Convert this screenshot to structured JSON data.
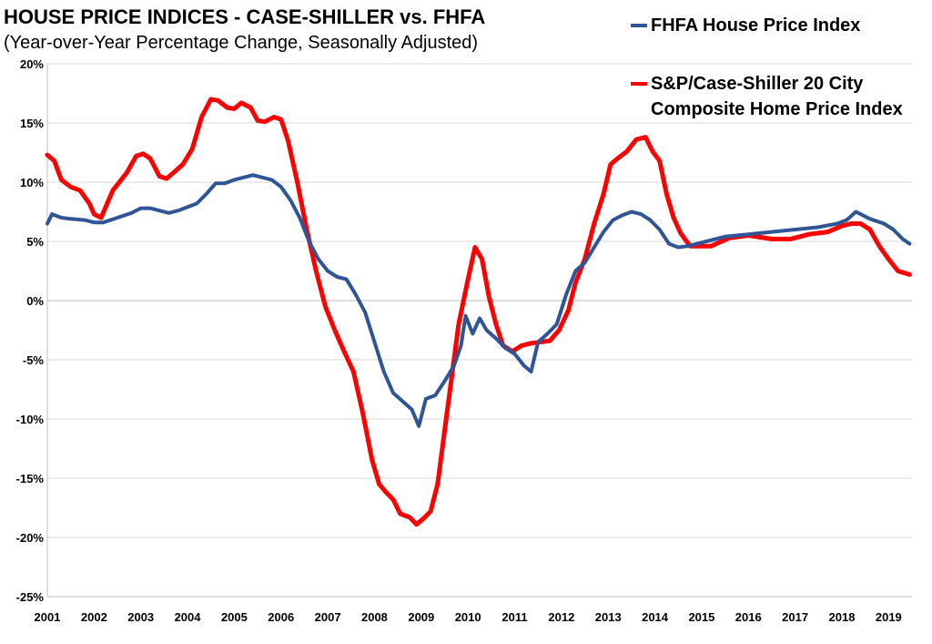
{
  "title": "HOUSE PRICE INDICES - CASE-SHILLER vs. FHFA",
  "subtitle": "(Year-over-Year Percentage Change, Seasonally Adjusted)",
  "legend": {
    "fhfa": "FHFA House Price Index",
    "cs_line1": "S&P/Case-Shiller 20 City",
    "cs_line2": "Composite Home Price Index"
  },
  "colors": {
    "fhfa": "#2f5597",
    "cs": "#ff0000",
    "grid": "#d9d9d9"
  },
  "chart_data": {
    "type": "line",
    "title": "HOUSE PRICE INDICES - CASE-SHILLER vs. FHFA",
    "subtitle": "(Year-over-Year Percentage Change, Seasonally Adjusted)",
    "ylim": [
      -25,
      20
    ],
    "xlim": [
      2001,
      2019.5
    ],
    "yticks": [
      20,
      15,
      10,
      5,
      0,
      -5,
      -10,
      -15,
      -20,
      -25
    ],
    "ytick_labels": [
      "20%",
      "15%",
      "10%",
      "5%",
      "0%",
      "-5%",
      "-10%",
      "-15%",
      "-20%",
      "-25%"
    ],
    "xticks": [
      2001,
      2002,
      2003,
      2004,
      2005,
      2006,
      2007,
      2008,
      2009,
      2010,
      2011,
      2012,
      2013,
      2014,
      2015,
      2016,
      2017,
      2018,
      2019
    ],
    "xtick_labels": [
      "2001",
      "2002",
      "2003",
      "2004",
      "2005",
      "2006",
      "2007",
      "2008",
      "2009",
      "2010",
      "2011",
      "2012",
      "2013",
      "2014",
      "2015",
      "2016",
      "2017",
      "2018",
      "2019"
    ],
    "grid": "horizontal",
    "legend_position": "top-right",
    "series": [
      {
        "name": "FHFA House Price Index",
        "x": [
          2001.0,
          2001.1,
          2001.3,
          2001.5,
          2001.8,
          2002.0,
          2002.2,
          2002.5,
          2002.8,
          2003.0,
          2003.2,
          2003.4,
          2003.6,
          2003.8,
          2004.0,
          2004.2,
          2004.4,
          2004.6,
          2004.8,
          2005.0,
          2005.2,
          2005.4,
          2005.6,
          2005.8,
          2006.0,
          2006.2,
          2006.4,
          2006.6,
          2006.8,
          2007.0,
          2007.2,
          2007.4,
          2007.6,
          2007.8,
          2008.0,
          2008.2,
          2008.4,
          2008.6,
          2008.8,
          2008.95,
          2009.1,
          2009.3,
          2009.5,
          2009.7,
          2009.85,
          2009.95,
          2010.1,
          2010.25,
          2010.4,
          2010.6,
          2010.8,
          2011.0,
          2011.2,
          2011.35,
          2011.5,
          2011.7,
          2011.9,
          2012.1,
          2012.3,
          2012.5,
          2012.7,
          2012.9,
          2013.1,
          2013.3,
          2013.5,
          2013.7,
          2013.9,
          2014.1,
          2014.3,
          2014.5,
          2014.7,
          2014.9,
          2015.1,
          2015.5,
          2016.0,
          2016.5,
          2017.0,
          2017.5,
          2017.9,
          2018.1,
          2018.3,
          2018.6,
          2018.9,
          2019.1,
          2019.3,
          2019.45
        ],
        "values": [
          6.5,
          7.3,
          7.0,
          6.9,
          6.8,
          6.6,
          6.6,
          7.0,
          7.4,
          7.8,
          7.8,
          7.6,
          7.4,
          7.6,
          7.9,
          8.2,
          9.0,
          9.9,
          9.9,
          10.2,
          10.4,
          10.6,
          10.4,
          10.2,
          9.6,
          8.5,
          7.0,
          5.0,
          3.5,
          2.5,
          2.0,
          1.8,
          0.5,
          -1.0,
          -3.5,
          -6.0,
          -7.8,
          -8.5,
          -9.2,
          -10.6,
          -8.3,
          -8.0,
          -6.8,
          -5.5,
          -3.8,
          -1.3,
          -2.8,
          -1.5,
          -2.5,
          -3.2,
          -4.0,
          -4.5,
          -5.5,
          -6.0,
          -3.5,
          -2.8,
          -2.0,
          0.5,
          2.5,
          3.2,
          4.5,
          5.8,
          6.8,
          7.2,
          7.5,
          7.3,
          6.8,
          6.0,
          4.8,
          4.5,
          4.6,
          4.8,
          5.0,
          5.4,
          5.6,
          5.8,
          6.0,
          6.2,
          6.5,
          6.8,
          7.5,
          6.9,
          6.5,
          6.0,
          5.2,
          4.8
        ]
      },
      {
        "name": "S&P/Case-Shiller 20 City Composite Home Price Index",
        "x": [
          2001.0,
          2001.15,
          2001.3,
          2001.5,
          2001.7,
          2001.9,
          2002.0,
          2002.15,
          2002.4,
          2002.7,
          2002.9,
          2003.05,
          2003.2,
          2003.4,
          2003.55,
          2003.7,
          2003.9,
          2004.1,
          2004.3,
          2004.5,
          2004.65,
          2004.85,
          2005.0,
          2005.15,
          2005.35,
          2005.5,
          2005.65,
          2005.85,
          2006.0,
          2006.15,
          2006.35,
          2006.55,
          2006.75,
          2006.95,
          2007.15,
          2007.35,
          2007.55,
          2007.75,
          2007.95,
          2008.1,
          2008.25,
          2008.4,
          2008.55,
          2008.75,
          2008.9,
          2009.05,
          2009.2,
          2009.35,
          2009.5,
          2009.65,
          2009.8,
          2010.0,
          2010.15,
          2010.3,
          2010.45,
          2010.6,
          2010.75,
          2010.95,
          2011.15,
          2011.35,
          2011.55,
          2011.75,
          2011.95,
          2012.15,
          2012.3,
          2012.5,
          2012.7,
          2012.9,
          2013.05,
          2013.2,
          2013.4,
          2013.6,
          2013.8,
          2013.95,
          2014.1,
          2014.25,
          2014.4,
          2014.55,
          2014.75,
          2014.95,
          2015.2,
          2015.6,
          2016.0,
          2016.5,
          2016.9,
          2017.3,
          2017.7,
          2018.0,
          2018.2,
          2018.4,
          2018.6,
          2018.8,
          2019.0,
          2019.2,
          2019.45
        ],
        "values": [
          12.3,
          11.8,
          10.2,
          9.6,
          9.3,
          8.2,
          7.3,
          7.0,
          9.3,
          10.8,
          12.2,
          12.4,
          12.0,
          10.5,
          10.3,
          10.8,
          11.5,
          12.8,
          15.5,
          17.0,
          16.9,
          16.3,
          16.2,
          16.7,
          16.3,
          15.2,
          15.1,
          15.5,
          15.3,
          13.5,
          10.0,
          6.0,
          2.5,
          -0.5,
          -2.5,
          -4.3,
          -6.0,
          -9.5,
          -13.5,
          -15.5,
          -16.2,
          -16.8,
          -18.0,
          -18.3,
          -18.9,
          -18.4,
          -17.8,
          -15.5,
          -11.0,
          -6.5,
          -2.0,
          1.8,
          4.5,
          3.5,
          0.3,
          -2.0,
          -3.8,
          -4.3,
          -3.8,
          -3.6,
          -3.5,
          -3.4,
          -2.5,
          -0.8,
          1.5,
          3.5,
          6.5,
          9.0,
          11.5,
          12.0,
          12.6,
          13.6,
          13.8,
          12.6,
          11.8,
          9.0,
          7.0,
          5.7,
          4.6,
          4.6,
          4.6,
          5.3,
          5.5,
          5.2,
          5.2,
          5.6,
          5.8,
          6.3,
          6.5,
          6.5,
          6.0,
          4.6,
          3.5,
          2.5,
          2.2
        ]
      }
    ]
  }
}
